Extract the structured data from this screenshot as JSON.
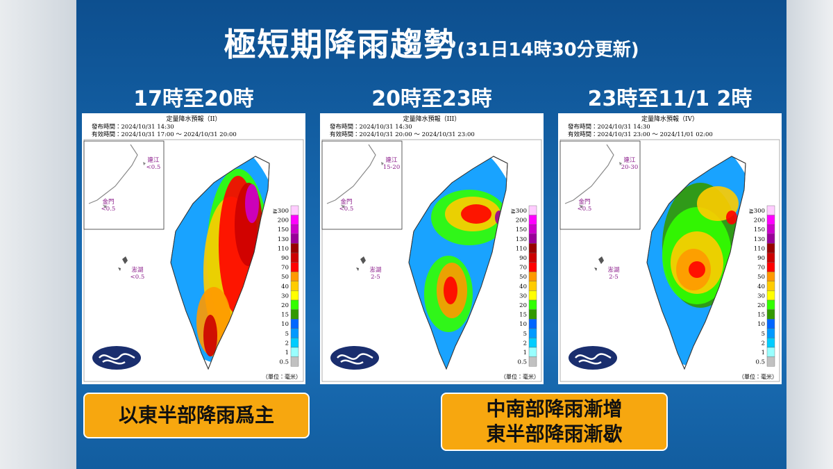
{
  "header": {
    "title": "極短期降雨趨勢",
    "subtitle": "(31日14時30分更新)"
  },
  "panels": [
    {
      "heading": "17時至20時",
      "map": {
        "title": "定量降水預報（II）",
        "issued": "發布時間：2024/10/31 14:30",
        "valid": "有效時間：2024/10/31 17:00 ～ 2024/10/31 20:00",
        "islands": [
          {
            "name": "連江",
            "value": "<0.5"
          },
          {
            "name": "金門",
            "value": "<0.5"
          },
          {
            "name": "澎湖",
            "value": "<0.5"
          }
        ]
      }
    },
    {
      "heading": "20時至23時",
      "map": {
        "title": "定量降水預報（III）",
        "issued": "發布時間：2024/10/31 14:30",
        "valid": "有效時間：2024/10/31 20:00 ～ 2024/10/31 23:00",
        "islands": [
          {
            "name": "連江",
            "value": "15-20"
          },
          {
            "name": "金門",
            "value": "<0.5"
          },
          {
            "name": "澎湖",
            "value": "2-5"
          }
        ]
      }
    },
    {
      "heading": "23時至11/1 2時",
      "map": {
        "title": "定量降水預報（IV）",
        "issued": "發布時間：2024/10/31 14:30",
        "valid": "有效時間：2024/10/31 23:00 ～ 2024/11/01 02:00",
        "islands": [
          {
            "name": "連江",
            "value": "20-30"
          },
          {
            "name": "金門",
            "value": "<0.5"
          },
          {
            "name": "澎湖",
            "value": "2-5"
          }
        ]
      }
    }
  ],
  "legend": {
    "levels": [
      "≧300",
      "200",
      "150",
      "130",
      "110",
      "90",
      "70",
      "50",
      "40",
      "30",
      "20",
      "15",
      "10",
      "5",
      "2",
      "1",
      "0.5"
    ],
    "unit": "（單位：毫米）"
  },
  "notes": [
    {
      "lines": [
        "以東半部降雨爲主"
      ]
    },
    {
      "lines": [
        "中南部降雨漸增",
        "東半部降雨漸歇"
      ]
    }
  ]
}
